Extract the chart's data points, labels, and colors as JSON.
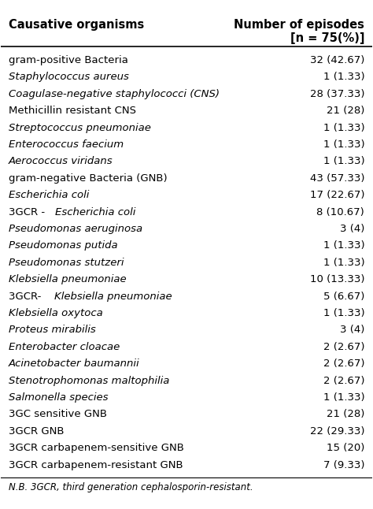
{
  "col1_header": "Causative organisms",
  "col2_header_line1": "Number of episodes",
  "col2_header_line2": "[n = 75(%)]",
  "rows": [
    {
      "organism": "gram-positive Bacteria",
      "value": "32 (42.67)",
      "italic": false,
      "mixed": false
    },
    {
      "organism": "Staphylococcus aureus",
      "value": "1 (1.33)",
      "italic": true,
      "mixed": false
    },
    {
      "organism": "Coagulase-negative staphylococci (CNS)",
      "value": "28 (37.33)",
      "italic": true,
      "mixed": false
    },
    {
      "organism": "Methicillin resistant CNS",
      "value": "21 (28)",
      "italic": false,
      "mixed": false
    },
    {
      "organism": "Streptococcus pneumoniae",
      "value": "1 (1.33)",
      "italic": true,
      "mixed": false
    },
    {
      "organism": "Enterococcus faecium",
      "value": "1 (1.33)",
      "italic": true,
      "mixed": false
    },
    {
      "organism": "Aerococcus viridans",
      "value": "1 (1.33)",
      "italic": true,
      "mixed": false
    },
    {
      "organism": "gram-negative Bacteria (GNB)",
      "value": "43 (57.33)",
      "italic": false,
      "mixed": false
    },
    {
      "organism": "Escherichia coli",
      "value": "17 (22.67)",
      "italic": true,
      "mixed": false
    },
    {
      "organism": "3GCR -Escherichia coli",
      "value": "8 (10.67)",
      "italic": false,
      "mixed": true,
      "prefix": "3GCR -",
      "species": "Escherichia coli"
    },
    {
      "organism": "Pseudomonas aeruginosa",
      "value": "3 (4)",
      "italic": true,
      "mixed": false
    },
    {
      "organism": "Pseudomonas putida",
      "value": "1 (1.33)",
      "italic": true,
      "mixed": false
    },
    {
      "organism": "Pseudomonas stutzeri",
      "value": "1 (1.33)",
      "italic": true,
      "mixed": false
    },
    {
      "organism": "Klebsiella pneumoniae",
      "value": "10 (13.33)",
      "italic": true,
      "mixed": false
    },
    {
      "organism": "3GCR- Klebsiella pneumoniae",
      "value": "5 (6.67)",
      "italic": false,
      "mixed": true,
      "prefix": "3GCR- ",
      "species": "Klebsiella pneumoniae"
    },
    {
      "organism": "Klebsiella oxytoca",
      "value": "1 (1.33)",
      "italic": true,
      "mixed": false
    },
    {
      "organism": "Proteus mirabilis",
      "value": "3 (4)",
      "italic": true,
      "mixed": false
    },
    {
      "organism": "Enterobacter cloacae",
      "value": "2 (2.67)",
      "italic": true,
      "mixed": false
    },
    {
      "organism": "Acinetobacter baumannii",
      "value": "2 (2.67)",
      "italic": true,
      "mixed": false
    },
    {
      "organism": "Stenotrophomonas maltophilia",
      "value": "2 (2.67)",
      "italic": true,
      "mixed": false
    },
    {
      "organism": "Salmonella species",
      "value": "1 (1.33)",
      "italic": true,
      "mixed": false
    },
    {
      "organism": "3GC sensitive GNB",
      "value": "21 (28)",
      "italic": false,
      "mixed": false
    },
    {
      "organism": "3GCR GNB",
      "value": "22 (29.33)",
      "italic": false,
      "mixed": false
    },
    {
      "organism": "3GCR carbapenem-sensitive GNB",
      "value": "15 (20)",
      "italic": false,
      "mixed": false
    },
    {
      "organism": "3GCR carbapenem-resistant GNB",
      "value": "7 (9.33)",
      "italic": false,
      "mixed": false
    }
  ],
  "footnote": "N.B. 3GCR, third generation cephalosporin-resistant.",
  "bg_color": "#ffffff",
  "text_color": "#000000",
  "header_fontsize": 10.5,
  "row_fontsize": 9.5,
  "footnote_fontsize": 8.5
}
